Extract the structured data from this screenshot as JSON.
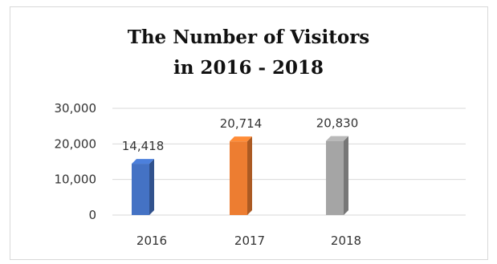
{
  "chart_data": {
    "type": "bar",
    "title_line1": "The Number of Visitors",
    "title_line2": "in 2016 - 2018",
    "categories": [
      "2016",
      "2017",
      "2018"
    ],
    "values": [
      14418,
      20714,
      20830
    ],
    "value_labels": [
      "14,418",
      "20,714",
      "20,830"
    ],
    "bar_colors": [
      "#4472c4",
      "#ed7d31",
      "#a5a5a5"
    ],
    "yticks": [
      0,
      10000,
      20000,
      30000
    ],
    "ytick_labels": [
      "0",
      "10,000",
      "20,000",
      "30,000"
    ],
    "ylim": [
      0,
      30000
    ],
    "grid": true,
    "xlabel": "",
    "ylabel": ""
  }
}
